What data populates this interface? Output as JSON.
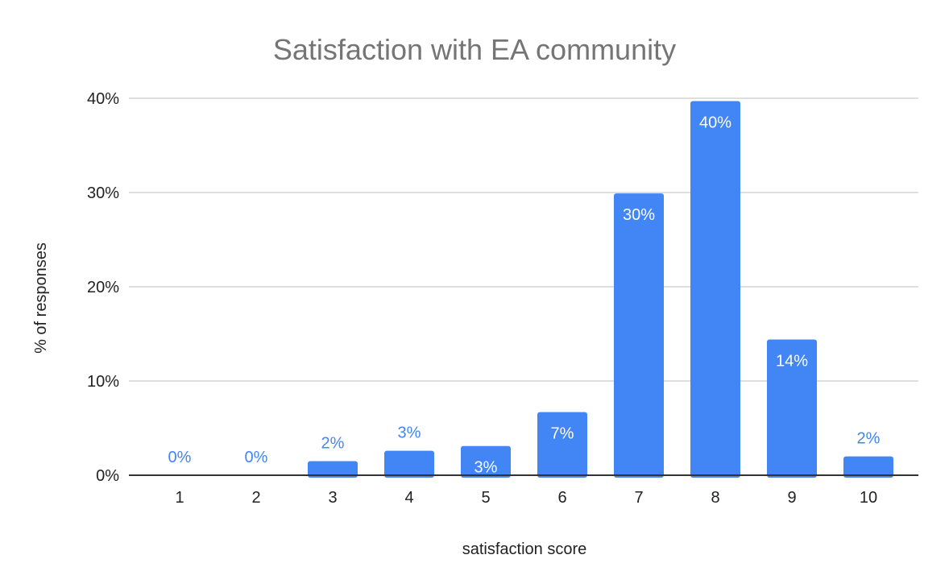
{
  "chart_data": {
    "type": "bar",
    "title": "Satisfaction with EA community",
    "xlabel": "satisfaction score",
    "ylabel": "% of responses",
    "categories": [
      "1",
      "2",
      "3",
      "4",
      "5",
      "6",
      "7",
      "8",
      "9",
      "10"
    ],
    "values": [
      0,
      0,
      1.5,
      2.6,
      3.1,
      6.7,
      29.9,
      39.7,
      14.4,
      2.0
    ],
    "data_labels": [
      "0%",
      "0%",
      "2%",
      "3%",
      "3%",
      "7%",
      "30%",
      "40%",
      "14%",
      "2%"
    ],
    "ylim": [
      0,
      40
    ],
    "yticks": [
      0,
      10,
      20,
      30,
      40
    ],
    "ytick_labels": [
      "0%",
      "10%",
      "20%",
      "30%",
      "40%"
    ],
    "grid": true,
    "legend": "none",
    "colors": {
      "bar": "#4285f4",
      "grid": "#cccccc",
      "axis": "#333333",
      "title": "#757575"
    }
  }
}
